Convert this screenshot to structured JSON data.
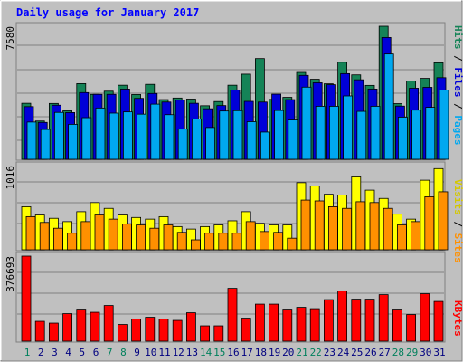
{
  "chart_data": [
    {
      "type": "bar",
      "title": "Daily usage for January 2017",
      "panel": "hits-files-pages",
      "ymax_label": "7580",
      "ylim": [
        0,
        7580
      ],
      "grid": true,
      "legend": [
        "Pages",
        "Files",
        "Hits"
      ],
      "legend_placement": "right-vertical",
      "categories": [
        "1",
        "2",
        "3",
        "4",
        "5",
        "6",
        "7",
        "8",
        "9",
        "10",
        "11",
        "12",
        "13",
        "14",
        "15",
        "16",
        "17",
        "18",
        "19",
        "20",
        "21",
        "22",
        "23",
        "24",
        "25",
        "26",
        "27",
        "28",
        "29",
        "30",
        "31"
      ],
      "series": [
        {
          "name": "Hits",
          "color": "#158357",
          "values": [
            3190,
            2180,
            3180,
            2760,
            4310,
            3700,
            3880,
            4220,
            3690,
            4270,
            3400,
            3490,
            3430,
            3050,
            3290,
            4220,
            4850,
            5740,
            3410,
            3530,
            4950,
            4560,
            4300,
            5530,
            4810,
            4210,
            7580,
            3170,
            4460,
            4610,
            5500
          ]
        },
        {
          "name": "Files",
          "color": "#0000d8",
          "values": [
            3000,
            2100,
            3080,
            2660,
            3800,
            3700,
            3700,
            4000,
            3470,
            3750,
            3260,
            3370,
            3190,
            2880,
            3060,
            3950,
            3300,
            3260,
            3710,
            3400,
            4780,
            4360,
            4250,
            4880,
            4530,
            4000,
            6940,
            3030,
            4050,
            4100,
            4650
          ]
        },
        {
          "name": "Pages",
          "color": "#00a8f0",
          "values": [
            2120,
            1700,
            2670,
            1990,
            2370,
            2920,
            2630,
            2700,
            2570,
            3140,
            2540,
            1720,
            2290,
            1810,
            2750,
            2770,
            2140,
            1550,
            2780,
            2240,
            4110,
            3020,
            3020,
            3610,
            2730,
            3020,
            6000,
            2400,
            2800,
            2960,
            3940
          ]
        }
      ]
    },
    {
      "type": "bar",
      "panel": "visits-sites",
      "ymax_label": "1016",
      "ylim": [
        0,
        1016
      ],
      "grid": true,
      "legend": [
        "Sites",
        "Visits"
      ],
      "legend_placement": "right-vertical",
      "categories": [
        "1",
        "2",
        "3",
        "4",
        "5",
        "6",
        "7",
        "8",
        "9",
        "10",
        "11",
        "12",
        "13",
        "14",
        "15",
        "16",
        "17",
        "18",
        "19",
        "20",
        "21",
        "22",
        "23",
        "24",
        "25",
        "26",
        "27",
        "28",
        "29",
        "30",
        "31"
      ],
      "series": [
        {
          "name": "Visits",
          "color": "#ffff00",
          "values": [
            520,
            420,
            380,
            340,
            460,
            570,
            500,
            420,
            390,
            370,
            400,
            280,
            250,
            280,
            300,
            350,
            460,
            320,
            300,
            300,
            810,
            770,
            670,
            660,
            880,
            720,
            620,
            430,
            370,
            840,
            980
          ]
        },
        {
          "name": "Sites",
          "color": "#ff9000",
          "values": [
            400,
            330,
            260,
            200,
            340,
            420,
            370,
            310,
            300,
            260,
            300,
            210,
            120,
            200,
            200,
            200,
            340,
            220,
            210,
            140,
            600,
            590,
            520,
            500,
            580,
            570,
            500,
            300,
            340,
            640,
            700
          ]
        }
      ]
    },
    {
      "type": "bar",
      "panel": "kbytes",
      "ymax_label": "376693",
      "ylim": [
        0,
        376693
      ],
      "grid": true,
      "legend": [
        "KBytes"
      ],
      "legend_placement": "right-vertical",
      "categories": [
        "1",
        "2",
        "3",
        "4",
        "5",
        "6",
        "7",
        "8",
        "9",
        "10",
        "11",
        "12",
        "13",
        "14",
        "15",
        "16",
        "17",
        "18",
        "19",
        "20",
        "21",
        "22",
        "23",
        "24",
        "25",
        "26",
        "27",
        "28",
        "29",
        "30",
        "31"
      ],
      "series": [
        {
          "name": "KBytes",
          "color": "#ff0000",
          "values": [
            376693,
            88000,
            80000,
            122000,
            142000,
            128000,
            158000,
            74000,
            98000,
            106000,
            98000,
            92000,
            126000,
            68000,
            68000,
            234000,
            102000,
            164000,
            164000,
            142000,
            150000,
            144000,
            184000,
            222000,
            186000,
            186000,
            206000,
            142000,
            118000,
            210000,
            176000
          ]
        }
      ]
    }
  ],
  "x_axis": {
    "labels": [
      "1",
      "2",
      "3",
      "4",
      "5",
      "6",
      "7",
      "8",
      "9",
      "10",
      "11",
      "12",
      "13",
      "14",
      "15",
      "16",
      "17",
      "18",
      "19",
      "20",
      "21",
      "22",
      "23",
      "24",
      "25",
      "26",
      "27",
      "28",
      "29",
      "30",
      "31"
    ],
    "weekend_color": "#00805c",
    "weekday_color": "#000080",
    "weekend_days": [
      "1",
      "7",
      "8",
      "14",
      "15",
      "21",
      "22",
      "28",
      "29"
    ]
  },
  "legend_colors": {
    "Pages": "#00a8f0",
    "Files": "#0000d8",
    "Hits": "#158357",
    "Sites": "#ff9000",
    "Visits": "#d4c800",
    "KBytes": "#ff0000",
    "separator": "#000000"
  }
}
